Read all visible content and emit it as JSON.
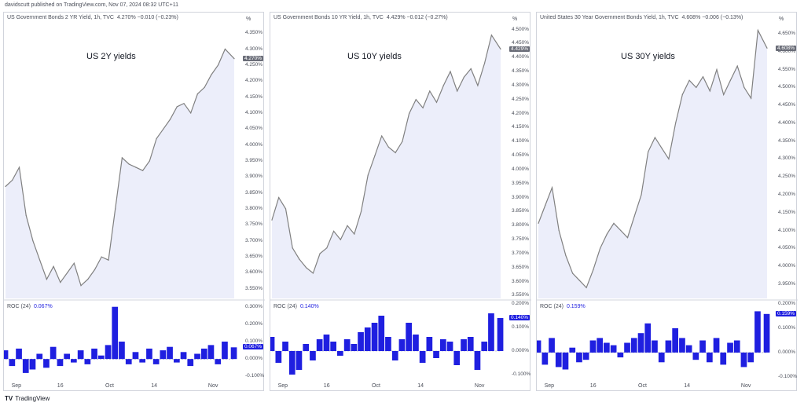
{
  "header": "davidscutt published on TradingView.com, Nov 07, 2024 08:32 UTC+11",
  "footer": {
    "logo": "TV",
    "brand": "TradingView"
  },
  "colors": {
    "line": "#808080",
    "fill": "#dfe3f7",
    "roc": "#1f1fe0",
    "border": "#d1d4dc"
  },
  "chart_data": [
    {
      "type": "line",
      "header_text": "US Government Bonds 2 YR Yield, 1h, TVC",
      "header_values": "4.270%  −0.010 (−0.23%)",
      "title": "US 2Y yields",
      "unit": "%",
      "last_label": "4.270%",
      "yticks": [
        "4.350%",
        "4.300%",
        "4.250%",
        "4.200%",
        "4.150%",
        "4.100%",
        "4.050%",
        "4.000%",
        "3.950%",
        "3.900%",
        "3.850%",
        "3.800%",
        "3.750%",
        "3.700%",
        "3.650%",
        "3.600%",
        "3.550%"
      ],
      "ylim": [
        3.52,
        4.37
      ],
      "xticks": [
        "Sep",
        "16",
        "Oct",
        "14",
        "Nov"
      ],
      "x": [
        0,
        3,
        6,
        9,
        12,
        15,
        18,
        21,
        24,
        27,
        30,
        33,
        36,
        39,
        42,
        45,
        48,
        51,
        54,
        57,
        60,
        63,
        66,
        69,
        72,
        75,
        78,
        81,
        84,
        87,
        90,
        93,
        96,
        100
      ],
      "values": [
        3.87,
        3.89,
        3.93,
        3.78,
        3.7,
        3.64,
        3.58,
        3.62,
        3.57,
        3.6,
        3.63,
        3.56,
        3.58,
        3.61,
        3.65,
        3.64,
        3.8,
        3.96,
        3.94,
        3.93,
        3.92,
        3.95,
        4.02,
        4.05,
        4.08,
        4.12,
        4.13,
        4.1,
        4.16,
        4.18,
        4.22,
        4.25,
        4.3,
        4.27
      ],
      "roc": {
        "label": "ROC (24)",
        "value_label": "0.067%",
        "yticks": [
          "0.300%",
          "0.200%",
          "0.100%",
          "0.000%",
          "-0.100%"
        ],
        "ylim": [
          -0.13,
          0.33
        ],
        "values": [
          0.05,
          -0.04,
          0.06,
          -0.08,
          -0.06,
          0.03,
          -0.05,
          0.07,
          -0.04,
          0.03,
          -0.02,
          0.05,
          -0.03,
          0.06,
          0.02,
          0.08,
          0.3,
          0.1,
          -0.03,
          0.04,
          -0.02,
          0.06,
          -0.03,
          0.05,
          0.07,
          -0.02,
          0.04,
          -0.04,
          0.03,
          0.06,
          0.08,
          -0.03,
          0.1,
          0.067
        ]
      }
    },
    {
      "type": "line",
      "header_text": "US Government Bonds 10 YR Yield, 1h, TVC",
      "header_values": "4.429%  −0.012 (−0.27%)",
      "title": "US 10Y yields",
      "unit": "%",
      "last_label": "4.429%",
      "yticks": [
        "4.500%",
        "4.450%",
        "4.400%",
        "4.350%",
        "4.300%",
        "4.250%",
        "4.200%",
        "4.150%",
        "4.100%",
        "4.050%",
        "4.000%",
        "3.950%",
        "3.900%",
        "3.850%",
        "3.800%",
        "3.750%",
        "3.700%",
        "3.650%",
        "3.600%",
        "3.550%"
      ],
      "ylim": [
        3.54,
        4.51
      ],
      "xticks": [
        "Sep",
        "16",
        "Oct",
        "14",
        "Nov"
      ],
      "x": [
        0,
        3,
        6,
        9,
        12,
        15,
        18,
        21,
        24,
        27,
        30,
        33,
        36,
        39,
        42,
        45,
        48,
        51,
        54,
        57,
        60,
        63,
        66,
        69,
        72,
        75,
        78,
        81,
        84,
        87,
        90,
        93,
        96,
        100
      ],
      "values": [
        3.82,
        3.9,
        3.86,
        3.72,
        3.68,
        3.65,
        3.63,
        3.7,
        3.72,
        3.78,
        3.75,
        3.8,
        3.77,
        3.85,
        3.98,
        4.05,
        4.12,
        4.08,
        4.06,
        4.1,
        4.2,
        4.25,
        4.22,
        4.28,
        4.24,
        4.3,
        4.35,
        4.28,
        4.33,
        4.36,
        4.3,
        4.38,
        4.48,
        4.43
      ],
      "roc": {
        "label": "ROC (24)",
        "value_label": "0.140%",
        "yticks": [
          "0.200%",
          "0.100%",
          "0.000%",
          "-0.100%"
        ],
        "ylim": [
          -0.13,
          0.21
        ],
        "values": [
          0.06,
          -0.05,
          0.04,
          -0.1,
          -0.08,
          0.03,
          -0.04,
          0.05,
          0.07,
          0.04,
          -0.02,
          0.05,
          0.03,
          0.08,
          0.1,
          0.12,
          0.15,
          0.06,
          -0.04,
          0.05,
          0.12,
          0.07,
          -0.05,
          0.06,
          -0.03,
          0.05,
          0.04,
          -0.06,
          0.05,
          0.06,
          -0.08,
          0.04,
          0.16,
          0.14
        ]
      }
    },
    {
      "type": "line",
      "header_text": "United States 30 Year Government Bonds Yield, 1h, TVC",
      "header_values": "4.608%  −0.006 (−0.13%)",
      "title": "US 30Y yields",
      "unit": "%",
      "last_label": "4.608%",
      "yticks": [
        "4.650%",
        "4.600%",
        "4.550%",
        "4.500%",
        "4.450%",
        "4.400%",
        "4.350%",
        "4.300%",
        "4.250%",
        "4.200%",
        "4.150%",
        "4.100%",
        "4.050%",
        "4.000%",
        "3.950%"
      ],
      "ylim": [
        3.91,
        4.67
      ],
      "xticks": [
        "Sep",
        "16",
        "Oct",
        "14",
        "Nov"
      ],
      "x": [
        0,
        3,
        6,
        9,
        12,
        15,
        18,
        21,
        24,
        27,
        30,
        33,
        36,
        39,
        42,
        45,
        48,
        51,
        54,
        57,
        60,
        63,
        66,
        69,
        72,
        75,
        78,
        81,
        84,
        87,
        90,
        93,
        96,
        100
      ],
      "values": [
        4.12,
        4.17,
        4.22,
        4.1,
        4.03,
        3.98,
        3.96,
        3.94,
        3.99,
        4.05,
        4.09,
        4.12,
        4.1,
        4.08,
        4.14,
        4.2,
        4.32,
        4.36,
        4.33,
        4.3,
        4.4,
        4.48,
        4.52,
        4.5,
        4.53,
        4.49,
        4.55,
        4.48,
        4.52,
        4.56,
        4.5,
        4.47,
        4.66,
        4.61
      ],
      "roc": {
        "label": "ROC (24)",
        "value_label": "0.159%",
        "yticks": [
          "0.200%",
          "0.100%",
          "0.000%",
          "-0.100%"
        ],
        "ylim": [
          -0.12,
          0.21
        ],
        "values": [
          0.05,
          -0.05,
          0.06,
          -0.06,
          -0.07,
          0.02,
          -0.04,
          -0.03,
          0.05,
          0.06,
          0.04,
          0.03,
          -0.02,
          0.04,
          0.06,
          0.08,
          0.12,
          0.05,
          -0.04,
          0.05,
          0.1,
          0.06,
          0.03,
          -0.03,
          0.05,
          -0.04,
          0.06,
          -0.05,
          0.04,
          0.05,
          -0.06,
          -0.04,
          0.17,
          0.159
        ]
      }
    }
  ]
}
